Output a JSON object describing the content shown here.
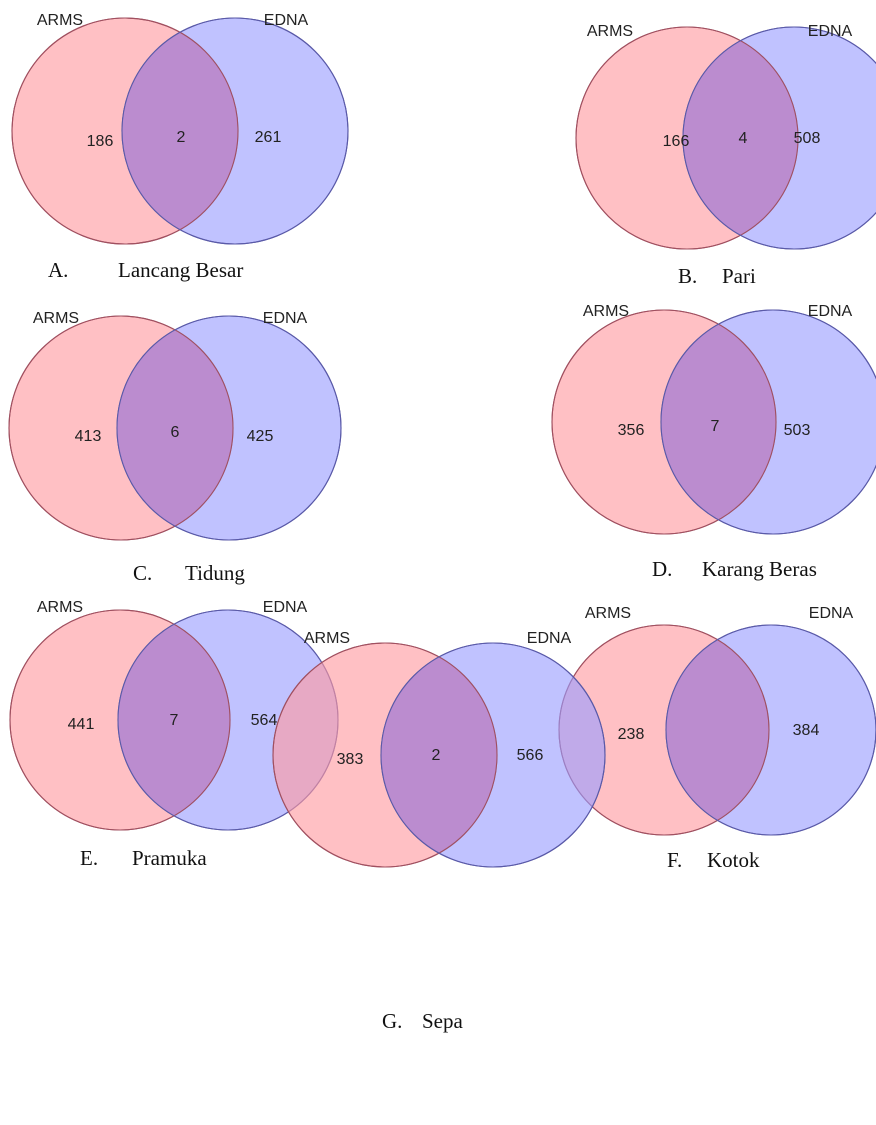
{
  "colors": {
    "left_fill": "#ff9aa0",
    "left_stroke": "#a05060",
    "right_fill": "#9a9cff",
    "right_stroke": "#5a5aa8",
    "overlap_fill": "#bb8ccf"
  },
  "diagrams": [
    {
      "letter": "A.",
      "site": "Lancang Besar",
      "left_label": "ARMS",
      "right_label": "EDNA",
      "left_only": "186",
      "overlap": "2",
      "right_only": "261"
    },
    {
      "letter": "B.",
      "site": "Pari",
      "left_label": "ARMS",
      "right_label": "EDNA",
      "left_only": "166",
      "overlap": "4",
      "right_only": "508"
    },
    {
      "letter": "C.",
      "site": "Tidung",
      "left_label": "ARMS",
      "right_label": "EDNA",
      "left_only": "413",
      "overlap": "6",
      "right_only": "425"
    },
    {
      "letter": "D.",
      "site": "Karang Beras",
      "left_label": "ARMS",
      "right_label": "EDNA",
      "left_only": "356",
      "overlap": "7",
      "right_only": "503"
    },
    {
      "letter": "E.",
      "site": "Pramuka",
      "left_label": "ARMS",
      "right_label": "EDNA",
      "left_only": "441",
      "overlap": "7",
      "right_only": "564"
    },
    {
      "letter": "F.",
      "site": "Kotok",
      "left_label": "ARMS",
      "right_label": "EDNA",
      "left_only": "238",
      "overlap": "",
      "right_only": "384"
    },
    {
      "letter": "G.",
      "site": "Sepa",
      "left_label": "ARMS",
      "right_label": "EDNA",
      "left_only": "383",
      "overlap": "2",
      "right_only": "566"
    }
  ]
}
